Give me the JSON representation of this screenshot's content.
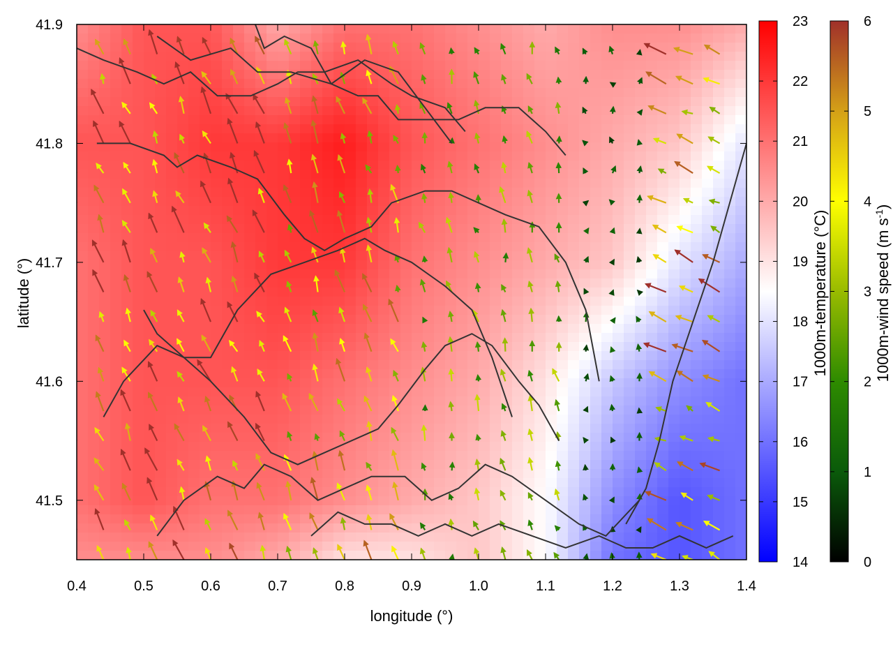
{
  "chart_data": {
    "type": "heatmap",
    "title": "",
    "xlabel": "longitude (°)",
    "ylabel": "latitude (°)",
    "xlim": [
      0.4,
      1.4
    ],
    "ylim": [
      41.45,
      41.9
    ],
    "xticks": [
      {
        "value": 0.4,
        "label": "0.4"
      },
      {
        "value": 0.5,
        "label": "0.5"
      },
      {
        "value": 0.6,
        "label": "0.6"
      },
      {
        "value": 0.7,
        "label": "0.7"
      },
      {
        "value": 0.8,
        "label": "0.8"
      },
      {
        "value": 0.9,
        "label": "0.9"
      },
      {
        "value": 1.0,
        "label": "1.0"
      },
      {
        "value": 1.1,
        "label": "1.1"
      },
      {
        "value": 1.2,
        "label": "1.2"
      },
      {
        "value": 1.3,
        "label": "1.3"
      },
      {
        "value": 1.4,
        "label": "1.4"
      }
    ],
    "yticks": [
      {
        "value": 41.5,
        "label": "41.5"
      },
      {
        "value": 41.6,
        "label": "41.6"
      },
      {
        "value": 41.7,
        "label": "41.7"
      },
      {
        "value": 41.8,
        "label": "41.8"
      },
      {
        "value": 41.9,
        "label": "41.9"
      }
    ],
    "grid": false,
    "temperature_colorbar": {
      "label": "1000m-temperature (°C)",
      "range": [
        14,
        23
      ],
      "ticks": [
        {
          "value": 14,
          "label": "14"
        },
        {
          "value": 15,
          "label": "15"
        },
        {
          "value": 16,
          "label": "16"
        },
        {
          "value": 17,
          "label": "17"
        },
        {
          "value": 18,
          "label": "18"
        },
        {
          "value": 19,
          "label": "19"
        },
        {
          "value": 20,
          "label": "20"
        },
        {
          "value": 21,
          "label": "21"
        },
        {
          "value": 22,
          "label": "22"
        },
        {
          "value": 23,
          "label": "23"
        }
      ],
      "colors": [
        "#0000ff",
        "#ffffff",
        "#ff0000"
      ]
    },
    "wind_colorbar": {
      "label_prefix": "1000m-wind speed (m s",
      "label_exponent": "-1",
      "label_suffix": ")",
      "range": [
        0,
        6
      ],
      "ticks": [
        {
          "value": 0,
          "label": "0"
        },
        {
          "value": 1,
          "label": "1"
        },
        {
          "value": 2,
          "label": "2"
        },
        {
          "value": 3,
          "label": "3"
        },
        {
          "value": 4,
          "label": "4"
        },
        {
          "value": 5,
          "label": "5"
        },
        {
          "value": 6,
          "label": "6"
        }
      ],
      "colors": [
        "#000000",
        "#0a5a0a",
        "#2e8b00",
        "#99bb00",
        "#ffff00",
        "#d4a017",
        "#a0302a"
      ]
    },
    "temperature_field": {
      "lon": [
        0.4,
        0.5,
        0.6,
        0.7,
        0.8,
        0.9,
        1.0,
        1.1,
        1.2,
        1.3,
        1.4
      ],
      "lat": [
        41.9,
        41.8,
        41.7,
        41.6,
        41.5,
        41.45
      ],
      "values": [
        [
          20.5,
          21.5,
          21.5,
          20.0,
          21.0,
          21.0,
          20.5,
          20.0,
          20.5,
          20.5,
          20.0
        ],
        [
          21.5,
          21.5,
          22.0,
          22.0,
          22.5,
          21.5,
          21.0,
          20.5,
          20.0,
          19.5,
          18.0
        ],
        [
          21.0,
          21.5,
          21.5,
          22.0,
          22.0,
          21.0,
          20.5,
          20.0,
          19.5,
          18.0,
          17.0
        ],
        [
          21.0,
          21.5,
          21.5,
          21.5,
          21.0,
          20.5,
          20.0,
          19.0,
          17.5,
          16.5,
          16.0
        ],
        [
          21.0,
          21.5,
          21.0,
          21.0,
          20.5,
          20.0,
          19.5,
          18.5,
          16.5,
          15.5,
          16.0
        ],
        [
          20.5,
          20.5,
          20.5,
          20.0,
          19.0,
          19.0,
          19.5,
          18.5,
          16.0,
          15.5,
          16.0
        ]
      ]
    },
    "coastline_contours": [
      {
        "lon": [
          0.4,
          0.44,
          0.49,
          0.53,
          0.57,
          0.61,
          0.66,
          0.7,
          0.73,
          0.77,
          0.82,
          0.87,
          0.9,
          0.95,
          0.98
        ],
        "lat": [
          41.88,
          41.87,
          41.86,
          41.85,
          41.86,
          41.84,
          41.84,
          41.85,
          41.86,
          41.86,
          41.87,
          41.85,
          41.84,
          41.83,
          41.81
        ]
      },
      {
        "lon": [
          0.52,
          0.57,
          0.63,
          0.67,
          0.72,
          0.78,
          0.83,
          0.88,
          0.92,
          0.96
        ],
        "lat": [
          41.89,
          41.87,
          41.88,
          41.86,
          41.86,
          41.85,
          41.87,
          41.86,
          41.83,
          41.8
        ]
      },
      {
        "lon": [
          0.66,
          0.68,
          0.71,
          0.75,
          0.78,
          0.82,
          0.85,
          0.88,
          0.93,
          0.97,
          1.01,
          1.06,
          1.1,
          1.13
        ],
        "lat": [
          41.91,
          41.88,
          41.89,
          41.88,
          41.85,
          41.84,
          41.84,
          41.82,
          41.82,
          41.82,
          41.83,
          41.83,
          41.81,
          41.79
        ]
      },
      {
        "lon": [
          0.43,
          0.48,
          0.53,
          0.55,
          0.58,
          0.63,
          0.67,
          0.71,
          0.74,
          0.77,
          0.8,
          0.84,
          0.87,
          0.92,
          0.96,
          1.0,
          1.04,
          1.09,
          1.13,
          1.16,
          1.18
        ],
        "lat": [
          41.8,
          41.8,
          41.79,
          41.78,
          41.79,
          41.78,
          41.77,
          41.74,
          41.72,
          41.71,
          41.72,
          41.73,
          41.75,
          41.76,
          41.76,
          41.75,
          41.74,
          41.73,
          41.7,
          41.66,
          41.6
        ]
      },
      {
        "lon": [
          0.5,
          0.52,
          0.56,
          0.6,
          0.64,
          0.69,
          0.74,
          0.79,
          0.83,
          0.86,
          0.9,
          0.95,
          0.99,
          1.02,
          1.05
        ],
        "lat": [
          41.66,
          41.64,
          41.62,
          41.62,
          41.66,
          41.69,
          41.7,
          41.71,
          41.72,
          41.71,
          41.7,
          41.68,
          41.66,
          41.62,
          41.57
        ]
      },
      {
        "lon": [
          0.44,
          0.47,
          0.52,
          0.56,
          0.6,
          0.65,
          0.69,
          0.73,
          0.77,
          0.81,
          0.85,
          0.88,
          0.92,
          0.95,
          0.99,
          1.02,
          1.06,
          1.09,
          1.12
        ],
        "lat": [
          41.57,
          41.6,
          41.63,
          41.62,
          41.6,
          41.57,
          41.54,
          41.53,
          41.54,
          41.55,
          41.56,
          41.58,
          41.61,
          41.63,
          41.64,
          41.63,
          41.6,
          41.58,
          41.55
        ]
      },
      {
        "lon": [
          0.52,
          0.56,
          0.61,
          0.65,
          0.68,
          0.72,
          0.76,
          0.8,
          0.84,
          0.89,
          0.93,
          0.97,
          1.01,
          1.05,
          1.1,
          1.15,
          1.19,
          1.24
        ],
        "lat": [
          41.47,
          41.5,
          41.52,
          41.51,
          41.53,
          41.52,
          41.5,
          41.51,
          41.52,
          41.52,
          41.5,
          41.51,
          41.53,
          41.52,
          41.5,
          41.48,
          41.47,
          41.5
        ]
      },
      {
        "lon": [
          0.75,
          0.79,
          0.83,
          0.87,
          0.91,
          0.95,
          0.99,
          1.03,
          1.08,
          1.13,
          1.18,
          1.22,
          1.26,
          1.3,
          1.34,
          1.38
        ],
        "lat": [
          41.47,
          41.49,
          41.48,
          41.48,
          41.47,
          41.48,
          41.47,
          41.48,
          41.47,
          41.46,
          41.47,
          41.46,
          41.46,
          41.47,
          41.46,
          41.47
        ]
      },
      {
        "lon": [
          1.22,
          1.25,
          1.27,
          1.29,
          1.32,
          1.35,
          1.38,
          1.4
        ],
        "lat": [
          41.48,
          41.51,
          41.55,
          41.6,
          41.65,
          41.7,
          41.76,
          41.8
        ]
      }
    ],
    "wind_vectors_summary": {
      "grid_spacing_lon": 0.04,
      "grid_spacing_lat": 0.025,
      "regions": [
        {
          "lon_range": [
            0.4,
            0.7
          ],
          "lat_range": [
            41.45,
            41.9
          ],
          "u": -1.5,
          "v": 3.5,
          "speed": 5.5
        },
        {
          "lon_range": [
            0.7,
            0.9
          ],
          "lat_range": [
            41.45,
            41.9
          ],
          "u": -1.0,
          "v": 3.0,
          "speed": 4.0
        },
        {
          "lon_range": [
            0.9,
            1.15
          ],
          "lat_range": [
            41.45,
            41.9
          ],
          "u": -0.5,
          "v": 2.0,
          "speed": 2.5
        },
        {
          "lon_range": [
            1.15,
            1.25
          ],
          "lat_range": [
            41.45,
            41.9
          ],
          "u": 0.0,
          "v": 1.0,
          "speed": 1.0
        },
        {
          "lon_range": [
            1.25,
            1.4
          ],
          "lat_range": [
            41.45,
            41.9
          ],
          "u": -3.0,
          "v": 1.5,
          "speed": 4.5
        }
      ]
    }
  }
}
